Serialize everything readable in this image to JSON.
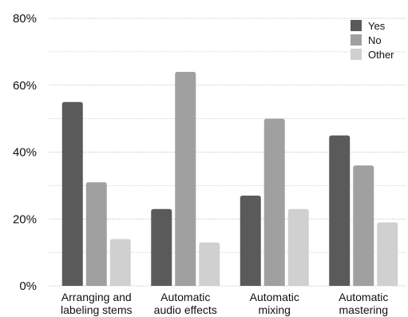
{
  "chart_data": {
    "type": "bar",
    "categories": [
      [
        "Arranging and",
        "labeling stems"
      ],
      [
        "Automatic",
        "audio effects"
      ],
      [
        "Automatic",
        "mixing"
      ],
      [
        "Automatic",
        "mastering"
      ]
    ],
    "series": [
      {
        "name": "Yes",
        "color": "#5a5a5a",
        "values": [
          55,
          23,
          27,
          45
        ]
      },
      {
        "name": "No",
        "color": "#a0a0a0",
        "values": [
          31,
          64,
          50,
          36
        ]
      },
      {
        "name": "Other",
        "color": "#d0d0d0",
        "values": [
          14,
          13,
          23,
          19
        ]
      }
    ],
    "ylim": [
      0,
      80
    ],
    "yticks": [
      0,
      20,
      40,
      60,
      80
    ],
    "ytick_labels": [
      "0%",
      "20%",
      "40%",
      "60%",
      "80%"
    ],
    "minor_gridlines": true,
    "legend_position": "top-right",
    "title": "",
    "xlabel": "",
    "ylabel": ""
  }
}
